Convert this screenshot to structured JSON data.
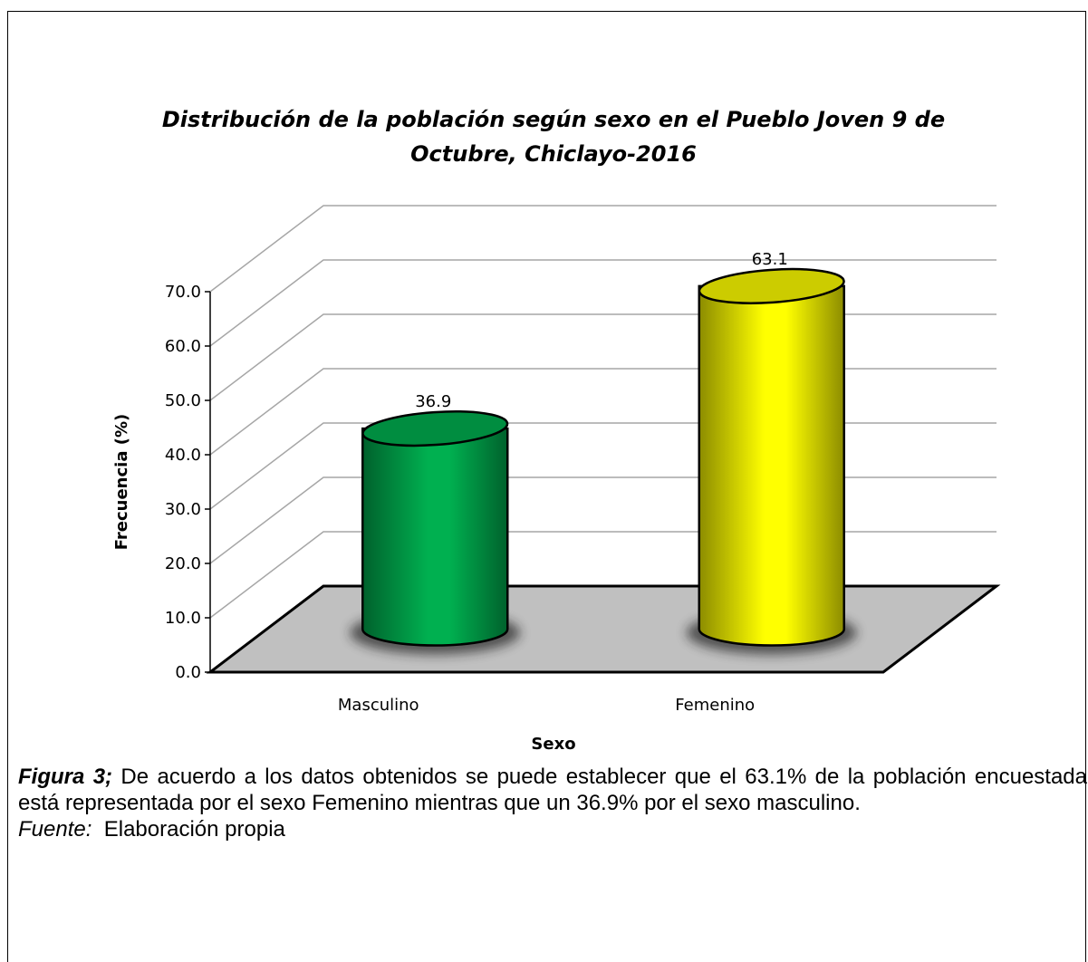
{
  "chart_data": {
    "type": "bar3d",
    "title": "Distribución de la población según sexo en el Pueblo Joven 9 de Octubre, Chiclayo-2016",
    "categories": [
      "Masculino",
      "Femenino"
    ],
    "values": [
      36.9,
      63.1
    ],
    "colors": [
      "#00b050",
      "#ffff00"
    ],
    "xlabel": "Sexo",
    "ylabel": "Frecuencia (%)",
    "ylim": [
      0,
      70
    ],
    "yticks": [
      {
        "value": 0,
        "label": "0.0"
      },
      {
        "value": 10,
        "label": "10.0"
      },
      {
        "value": 20,
        "label": "20.0"
      },
      {
        "value": 30,
        "label": "30.0"
      },
      {
        "value": 40,
        "label": "40.0"
      },
      {
        "value": 50,
        "label": "50.0"
      },
      {
        "value": 60,
        "label": "60.0"
      },
      {
        "value": 70,
        "label": "70.0"
      }
    ],
    "grid": true
  },
  "caption": {
    "label": "Figura 3;",
    "text": "De acuerdo a los datos obtenidos se puede establecer que el 63.1% de la población encuestada está representada por el sexo Femenino mientras que un 36.9% por el sexo masculino.",
    "source_label": "Fuente:",
    "source": "Elaboración propia"
  }
}
